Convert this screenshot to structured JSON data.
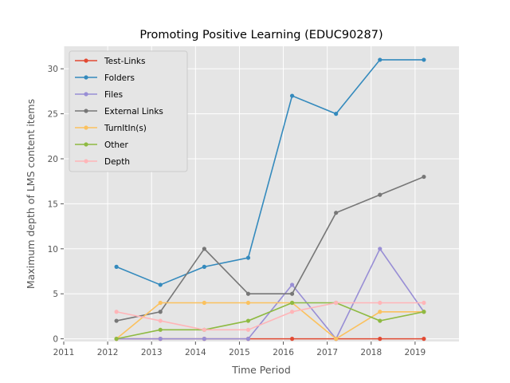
{
  "chart_data": {
    "type": "line",
    "title": "Promoting Positive Learning (EDUC90287)",
    "xlabel": "Time Period",
    "ylabel": "Maximum depth of LMS content items",
    "xlim": [
      2011,
      2020
    ],
    "ylim": [
      -0.3,
      32.5
    ],
    "xticks": [
      "2011",
      "2012",
      "2013",
      "2014",
      "2015",
      "2016",
      "2017",
      "2018",
      "2019"
    ],
    "yticks": [
      "0",
      "5",
      "10",
      "15",
      "20",
      "25",
      "30"
    ],
    "grid": true,
    "legend_position": "top-left",
    "x": [
      2012.2,
      2013.2,
      2014.2,
      2015.2,
      2016.2,
      2017.2,
      2018.2,
      2019.2
    ],
    "series": [
      {
        "name": "Test-Links",
        "color": "#E24A33",
        "values": [
          0,
          0,
          0,
          0,
          0,
          0,
          0,
          0
        ]
      },
      {
        "name": "Folders",
        "color": "#348ABD",
        "values": [
          8,
          6,
          8,
          9,
          27,
          25,
          31,
          31
        ]
      },
      {
        "name": "Files",
        "color": "#988ED5",
        "values": [
          0,
          0,
          0,
          0,
          6,
          0,
          10,
          3
        ]
      },
      {
        "name": "External Links",
        "color": "#777777",
        "values": [
          2,
          3,
          10,
          5,
          5,
          14,
          16,
          18
        ]
      },
      {
        "name": "TurnItIn(s)",
        "color": "#FBC15E",
        "values": [
          0,
          4,
          4,
          4,
          4,
          0,
          3,
          3
        ]
      },
      {
        "name": "Other",
        "color": "#8EBA42",
        "values": [
          0,
          1,
          1,
          2,
          4,
          4,
          2,
          3
        ]
      },
      {
        "name": "Depth",
        "color": "#FFB5B8",
        "values": [
          3,
          2,
          1,
          1,
          3,
          4,
          4,
          4
        ]
      }
    ]
  }
}
